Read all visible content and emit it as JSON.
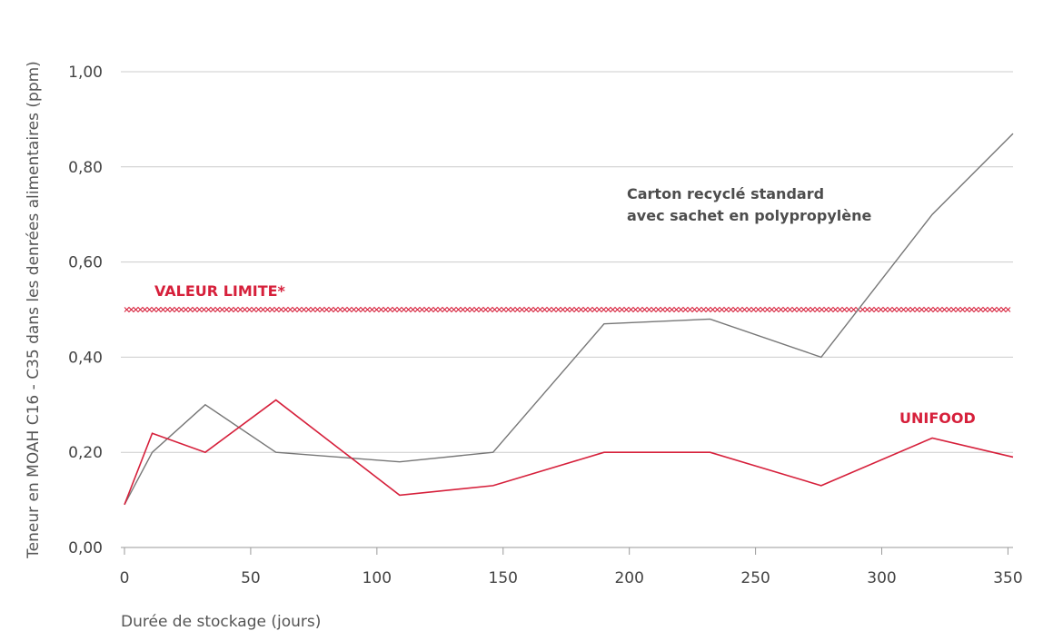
{
  "chart_data": {
    "type": "line",
    "xlabel": "Durée de stockage (jours)",
    "ylabel": "Teneur en MOAH C16 - C35 dans les denrées alimentaires (ppm)",
    "xlim": [
      0,
      352
    ],
    "ylim": [
      0,
      1.0
    ],
    "x_ticks": [
      0,
      50,
      100,
      150,
      200,
      250,
      300,
      350
    ],
    "y_ticks": [
      0,
      0.2,
      0.4,
      0.6,
      0.8,
      1.0
    ],
    "y_tick_labels": [
      "0,00",
      "0,20",
      "0,40",
      "0,60",
      "0,80",
      "1,00"
    ],
    "grid": "horizontal",
    "limit_line": {
      "label": "VALEUR LIMITE*",
      "value": 0.5,
      "color": "#d6203b"
    },
    "series": [
      {
        "name": "Carton recyclé standard\navec sachet en polypropylène",
        "label_lines": [
          "Carton recyclé standard",
          "avec sachet en polypropylène"
        ],
        "color": "#777777",
        "label_color": "#4d4d4d",
        "x": [
          0,
          11,
          32,
          60,
          109,
          146,
          190,
          232,
          276,
          320,
          352
        ],
        "y": [
          0.09,
          0.2,
          0.3,
          0.2,
          0.18,
          0.2,
          0.47,
          0.48,
          0.4,
          0.7,
          0.87
        ]
      },
      {
        "name": "UNIFOOD",
        "label_lines": [
          "UNIFOOD"
        ],
        "color": "#d6203b",
        "label_color": "#d6203b",
        "x": [
          0,
          11,
          32,
          60,
          109,
          146,
          190,
          232,
          276,
          320,
          352
        ],
        "y": [
          0.09,
          0.24,
          0.2,
          0.31,
          0.11,
          0.13,
          0.2,
          0.2,
          0.13,
          0.23,
          0.19
        ]
      }
    ]
  }
}
